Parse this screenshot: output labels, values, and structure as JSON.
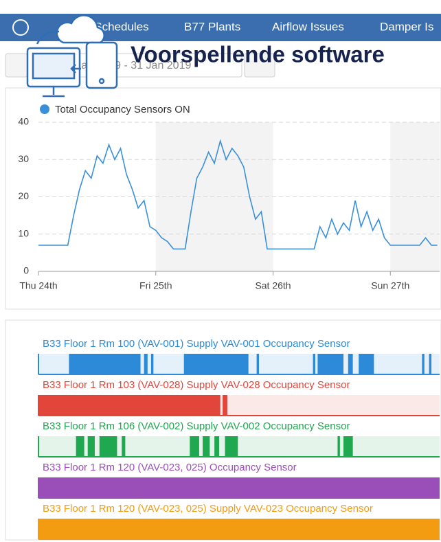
{
  "nav": [
    "HU Schedules",
    "B77 Plants",
    "Airflow Issues",
    "Damper Is"
  ],
  "date_range": "24 Jan 2019 - 31 Jan 2019",
  "overlay_title": "Voorspellende software",
  "chart_data": {
    "type": "line",
    "x": [
      0,
      0.05,
      0.1,
      0.15,
      0.2,
      0.25,
      0.3,
      0.35,
      0.4,
      0.45,
      0.5,
      0.55,
      0.6,
      0.65,
      0.7,
      0.75,
      0.8,
      0.85,
      0.9,
      0.95,
      1.0,
      1.05,
      1.1,
      1.15,
      1.2,
      1.25,
      1.3,
      1.35,
      1.4,
      1.45,
      1.5,
      1.55,
      1.6,
      1.65,
      1.7,
      1.75,
      1.8,
      1.85,
      1.9,
      1.95,
      2.0,
      2.05,
      2.1,
      2.15,
      2.2,
      2.25,
      2.3,
      2.35,
      2.4,
      2.45,
      2.5,
      2.55,
      2.6,
      2.65,
      2.7,
      2.75,
      2.8,
      2.85,
      2.9,
      2.95,
      3.0,
      3.05,
      3.1,
      3.15,
      3.2,
      3.25,
      3.3,
      3.35,
      3.4
    ],
    "series": [
      {
        "name": "Total Occupancy Sensors ON",
        "color": "#3a8fd9",
        "values": [
          7,
          7,
          7,
          7,
          7,
          7,
          15,
          22,
          27,
          25,
          31,
          29,
          34,
          30,
          33,
          26,
          22,
          17,
          19,
          12,
          11,
          9,
          8,
          6,
          6,
          6,
          16,
          25,
          28,
          32,
          29,
          35,
          30,
          33,
          31,
          28,
          20,
          14,
          16,
          6,
          6,
          6,
          6,
          6,
          6,
          6,
          6,
          6,
          12,
          9,
          14,
          10,
          13,
          11,
          19,
          12,
          16,
          11,
          14,
          9,
          7,
          7,
          7,
          7,
          7,
          7,
          9,
          7,
          7
        ]
      }
    ],
    "xlim": [
      0,
      3.42
    ],
    "xticks": [
      {
        "value": 0,
        "label": "Thu 24th"
      },
      {
        "value": 1,
        "label": "Fri 25th"
      },
      {
        "value": 2,
        "label": "Sat 26th"
      },
      {
        "value": 3,
        "label": "Sun 27th"
      }
    ],
    "ylim": [
      0,
      40
    ],
    "yticks": [
      0,
      10,
      20,
      30,
      40
    ],
    "grid": true,
    "legend": "top-left",
    "timelines": [
      {
        "name": "B33 Floor 1 Rm 100 (VAV-001) Supply VAV-001 Occupancy Sensor",
        "color": "#2d8ad8",
        "on": [
          [
            0.26,
            0.87
          ],
          [
            0.9,
            0.93
          ],
          [
            0.96,
            0.98
          ],
          [
            1.24,
            1.79
          ],
          [
            1.86,
            1.88
          ],
          [
            2.34,
            2.36
          ],
          [
            2.38,
            2.6
          ],
          [
            2.64,
            2.68
          ],
          [
            2.73,
            2.86
          ],
          [
            3.27,
            3.29
          ],
          [
            3.33,
            3.35
          ]
        ]
      },
      {
        "name": "B33 Floor 1 Rm 103 (VAV-028) Supply VAV-028 Occupancy Sensor",
        "color": "#e2463b",
        "on": [
          [
            0,
            1.55
          ],
          [
            1.57,
            1.61
          ]
        ]
      },
      {
        "name": "B33 Floor 1 Rm 106 (VAV-002) Supply VAV-002 Occupancy Sensor",
        "color": "#1fa84f",
        "on": [
          [
            0.32,
            0.39
          ],
          [
            0.42,
            0.48
          ],
          [
            0.52,
            0.67
          ],
          [
            0.71,
            0.74
          ],
          [
            1.29,
            1.37
          ],
          [
            1.4,
            1.46
          ],
          [
            1.5,
            1.54
          ],
          [
            1.59,
            1.7
          ],
          [
            2.55,
            2.57
          ],
          [
            2.6,
            2.68
          ]
        ]
      },
      {
        "name": "B33 Floor 1 Rm 120 (VAV-023, 025) Occupancy Sensor",
        "color": "#9a4fb8",
        "on": [
          [
            0,
            3.42
          ]
        ]
      },
      {
        "name": "B33 Floor 1 Rm 120 (VAV-023, 025) Supply VAV-023 Occupancy Sensor",
        "color": "#f39c12",
        "on": [
          [
            0,
            3.42
          ]
        ]
      }
    ]
  }
}
